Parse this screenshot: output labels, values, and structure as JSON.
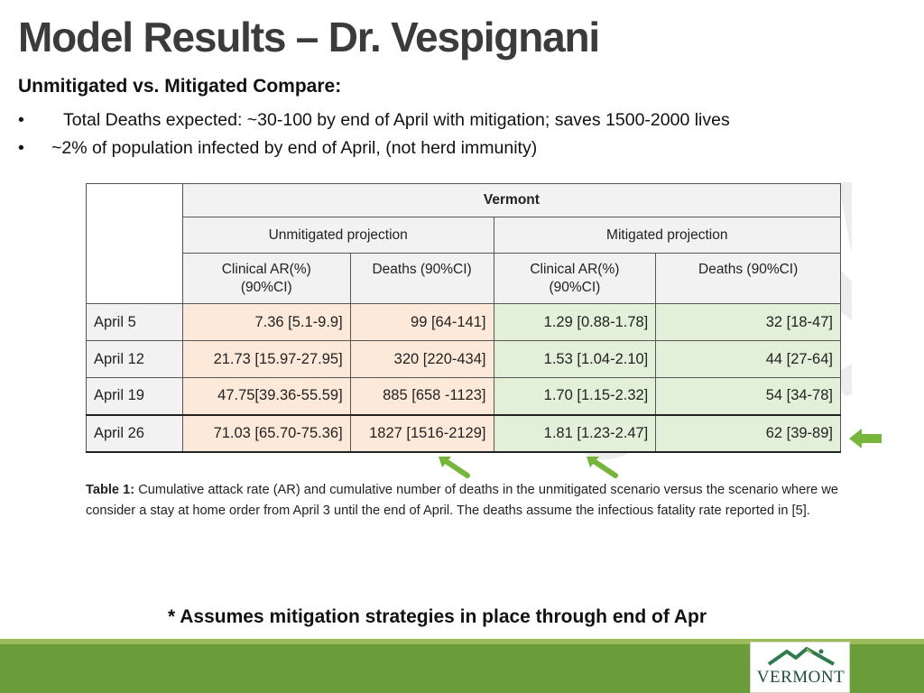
{
  "slide": {
    "title": "Model Results – Dr. Vespignani",
    "subtitle": "Unmitigated vs. Mitigated Compare:",
    "bullets": [
      "Total Deaths expected:  ~30-100 by end of April with mitigation; saves 1500-2000 lives",
      "~2% of population infected by end of April, (not herd immunity)"
    ],
    "bullet_symbol": "•",
    "footnote": "* Assumes mitigation strategies in place through end of Apr"
  },
  "table": {
    "region": "Vermont",
    "groups": [
      "Unmitigated projection",
      "Mitigated  projection"
    ],
    "columns": [
      {
        "line1": "Clinical  AR(%)",
        "line2": "(90%CI)"
      },
      {
        "line1": "Deaths (90%CI)",
        "line2": ""
      },
      {
        "line1": "Clinical  AR(%)",
        "line2": "(90%CI)"
      },
      {
        "line1": "Deaths (90%CI)",
        "line2": ""
      }
    ],
    "rows": [
      {
        "label": "April 5",
        "cells": [
          "7.36 [5.1-9.9]",
          "99 [64-141]",
          "1.29 [0.88-1.78]",
          "32 [18-47]"
        ]
      },
      {
        "label": "April 12",
        "cells": [
          "21.73 [15.97-27.95]",
          "320 [220-434]",
          "1.53 [1.04-2.10]",
          "44 [27-64]"
        ]
      },
      {
        "label": "April 19",
        "cells": [
          "47.75[39.36-55.59]",
          "885 [658 -1123]",
          "1.70 [1.15-2.32]",
          "54 [34-78]"
        ]
      },
      {
        "label": "April 26",
        "cells": [
          "71.03 [65.70-75.36]",
          "1827 [1516-2129]",
          "1.81 [1.23-2.47]",
          "62 [39-89]"
        ]
      }
    ],
    "caption_label": "Table 1:",
    "caption_text": " Cumulative attack rate (AR) and cumulative number of deaths in the unmitigated scenario versus the scenario where we consider a stay at home order from April 3 until the end of April. The deaths assume the infectious fatality rate reported in [5]."
  },
  "watermark": "ary",
  "logo": {
    "text": "VERMONT"
  },
  "colors": {
    "unmitigated_fill": "#fde9d9",
    "mitigated_fill": "#e2efd9",
    "header_fill": "#f2f2f2",
    "arrow_green": "#77b53c",
    "band_light": "#9bbb59",
    "band_dark": "#6a9c3a"
  },
  "icons": [
    "green-arrow-icon",
    "mountain-logo-icon"
  ]
}
